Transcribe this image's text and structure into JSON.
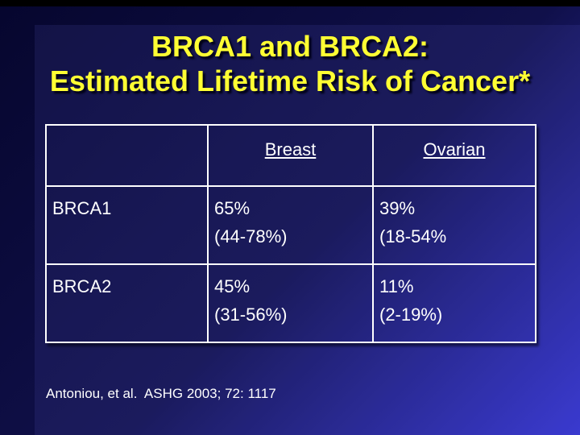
{
  "title": {
    "line1": "BRCA1 and BRCA2:",
    "line2": "Estimated Lifetime Risk of Cancer*"
  },
  "table": {
    "columns": [
      "",
      "Breast",
      "Ovarian"
    ],
    "rows": [
      {
        "gene": "BRCA1",
        "breast": {
          "value": "65%",
          "range": "(44-78%)"
        },
        "ovarian": {
          "value": "39%",
          "range": "(18-54%"
        }
      },
      {
        "gene": "BRCA2",
        "breast": {
          "value": "45%",
          "range": "(31-56%)"
        },
        "ovarian": {
          "value": "11%",
          "range": "(2-19%)"
        }
      }
    ]
  },
  "footer": {
    "citation": "Antoniou, et al.  ASHG 2003; 72: 1117"
  },
  "colors": {
    "title_yellow": "#ffff33",
    "background_dark": "#06062e",
    "background_blue": "#3434cd",
    "table_border": "#ffffff",
    "body_text": "#ffffff",
    "top_bar": "#000000"
  }
}
